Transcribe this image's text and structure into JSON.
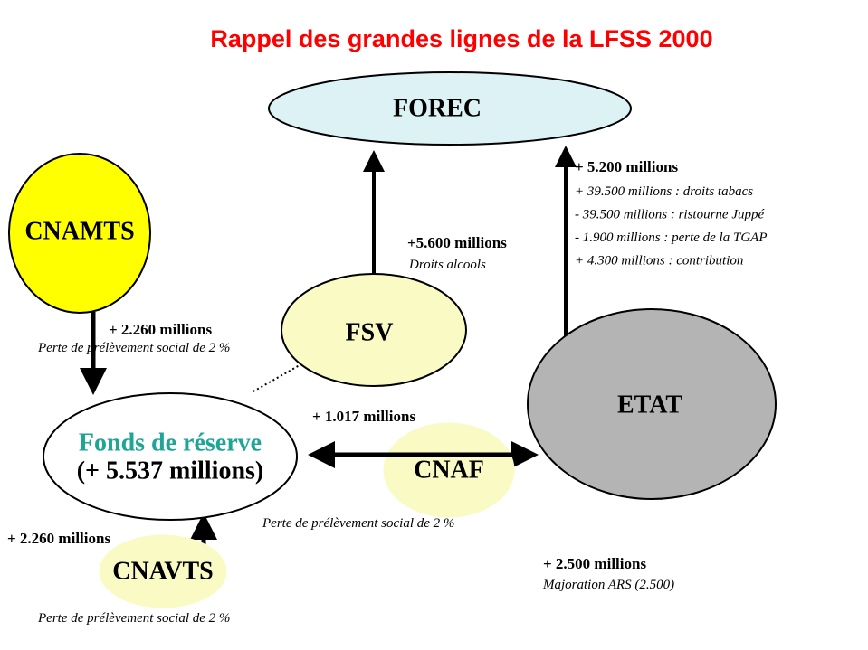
{
  "title": "Rappel des grandes lignes de la LFSS 2000",
  "nodes": {
    "forec": {
      "label": "FOREC"
    },
    "cnamts": {
      "label": "CNAMTS"
    },
    "fsv": {
      "label": "FSV"
    },
    "etat": {
      "label": "ETAT"
    },
    "fonds": {
      "label": "Fonds de réserve",
      "detail": "(+ 5.537 millions)"
    },
    "cnaf": {
      "label": "CNAF"
    },
    "cnavts": {
      "label": "CNAVTS"
    }
  },
  "flows": {
    "cnamts_to_fonds": {
      "amount": "+ 2.260 millions",
      "note": "Perte de prélèvement social de 2 %"
    },
    "fsv_to_forec": {
      "amount": "+5.600 millions",
      "note": "Droits alcools"
    },
    "etat_to_forec": {
      "amount": "+ 5.200 millions",
      "details": [
        "+ 39.500 millions : droits tabacs",
        "- 39.500 millions : ristourne Juppé",
        "- 1.900 millions : perte de la TGAP",
        "+ 4.300 millions : contribution"
      ]
    },
    "cnaf_link": {
      "amount": "+ 1.017 millions",
      "note": "Perte de prélèvement social de 2 %"
    },
    "cnavts_to_fonds": {
      "amount": "+ 2.260 millions",
      "note": "Perte de prélèvement social de 2 %"
    },
    "etat_ars": {
      "amount": "+ 2.500 millions",
      "note": "Majoration ARS (2.500)"
    }
  }
}
